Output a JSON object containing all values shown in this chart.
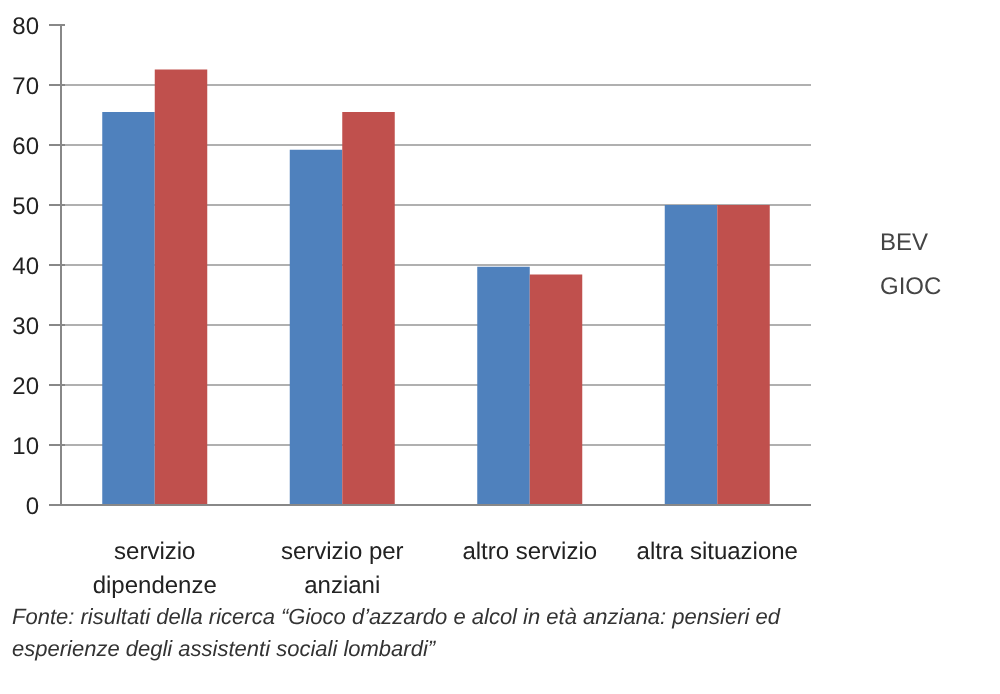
{
  "chart_data": {
    "type": "bar",
    "categories": [
      "servizio\ndipendenze",
      "servizio per\nanziani",
      "altro servizio",
      "altra situazione"
    ],
    "series": [
      {
        "name": "BEV",
        "color": "#4f81bd",
        "values": [
          65.5,
          59.2,
          39.7,
          50
        ]
      },
      {
        "name": "GIOC",
        "color": "#c0504d",
        "values": [
          72.6,
          65.5,
          38.4,
          50
        ]
      }
    ],
    "ylim": [
      0,
      80
    ],
    "yticks": [
      0,
      10,
      20,
      30,
      40,
      50,
      60,
      70,
      80
    ],
    "grid": "y",
    "legend": "right",
    "annotations": [
      "Fonte: risultati della ricerca “Gioco d’azzardo e alcol in età anziana: pensieri ed\nesperienze degli assistenti sociali lombardi”"
    ]
  }
}
